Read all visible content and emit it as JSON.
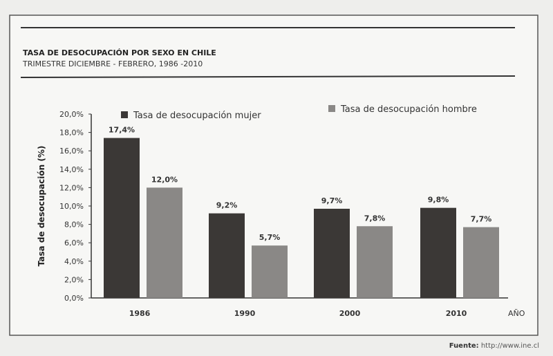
{
  "chart_data": {
    "type": "bar",
    "title": "TASA DE DESOCUPACIÓN POR SEXO EN CHILE",
    "subtitle": "TRIMESTRE DICIEMBRE - FEBRERO, 1986 -2010",
    "xlabel": "AÑO",
    "ylabel": "Tasa de desocupación (%)",
    "categories": [
      "1986",
      "1990",
      "2000",
      "2010"
    ],
    "series": [
      {
        "name": "Tasa de desocupación mujer",
        "values": [
          17.4,
          9.2,
          9.7,
          9.8
        ],
        "labels": [
          "17,4%",
          "9,2%",
          "9,7%",
          "9,8%"
        ],
        "color": "#3b3836"
      },
      {
        "name": "Tasa de desocupación hombre",
        "values": [
          12.0,
          5.7,
          7.8,
          7.7
        ],
        "labels": [
          "12,0%",
          "5,7%",
          "7,8%",
          "7,7%"
        ],
        "color": "#8a8886"
      }
    ],
    "ylim": [
      0,
      20
    ],
    "yticks": [
      "0,0%",
      "2,0%",
      "4,0%",
      "6,0%",
      "8,0%",
      "10,0%",
      "12,0%",
      "14,0%",
      "16,0%",
      "18,0%",
      "20,0%"
    ],
    "grid": false,
    "legend": "top"
  },
  "source": {
    "label": "Fuente:",
    "url": "http://www.ine.cl"
  }
}
